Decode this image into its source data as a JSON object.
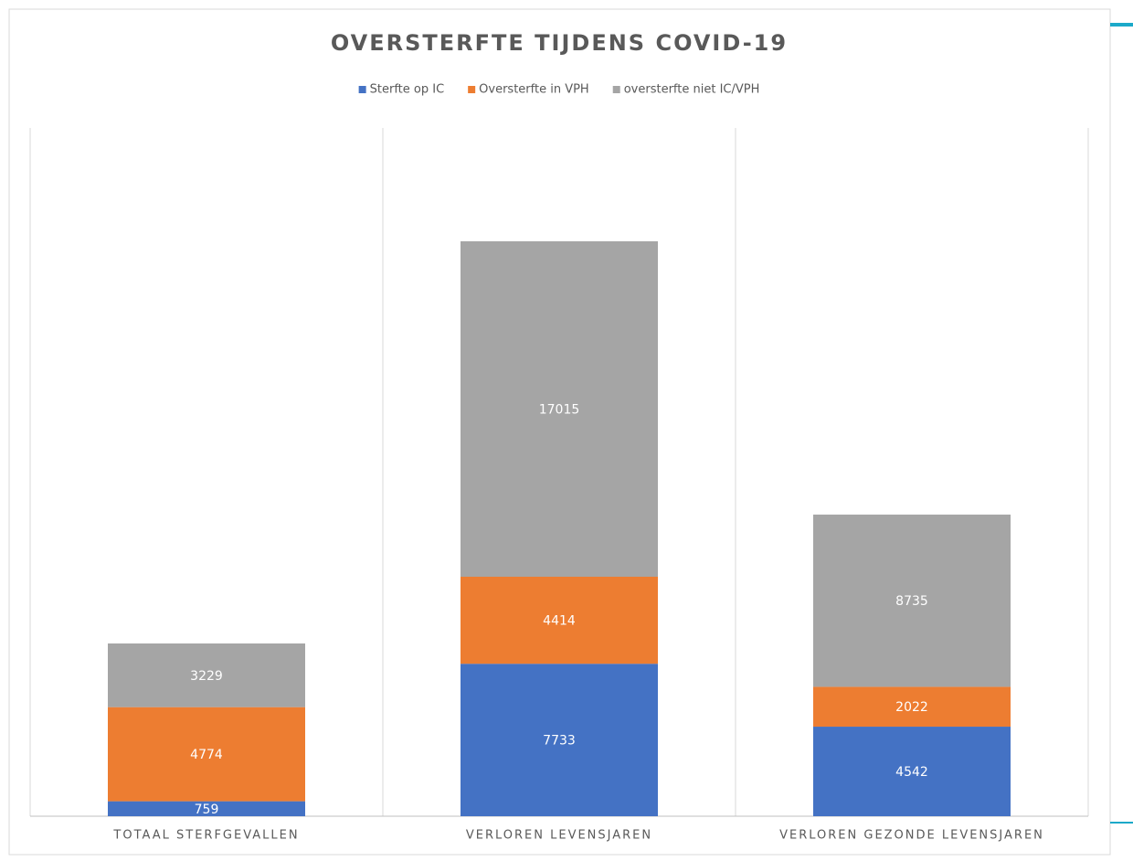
{
  "chart_data": {
    "type": "stacked_bar",
    "title": "OVERSTERFTE TIJDENS COVID-19",
    "categories": [
      "TOTAAL STERFGEVALLEN",
      "VERLOREN LEVENSJAREN",
      "VERLOREN GEZONDE LEVENSJAREN"
    ],
    "series": [
      {
        "name": "Sterfte op IC",
        "color": "#4472c4",
        "values": [
          759,
          7733,
          4542
        ]
      },
      {
        "name": "Oversterfte in VPH",
        "color": "#ed7d31",
        "values": [
          4774,
          4414,
          2022
        ]
      },
      {
        "name": "oversterfte niet IC/VPH",
        "color": "#a5a5a5",
        "values": [
          3229,
          17015,
          8735
        ]
      }
    ],
    "legend": "top"
  }
}
